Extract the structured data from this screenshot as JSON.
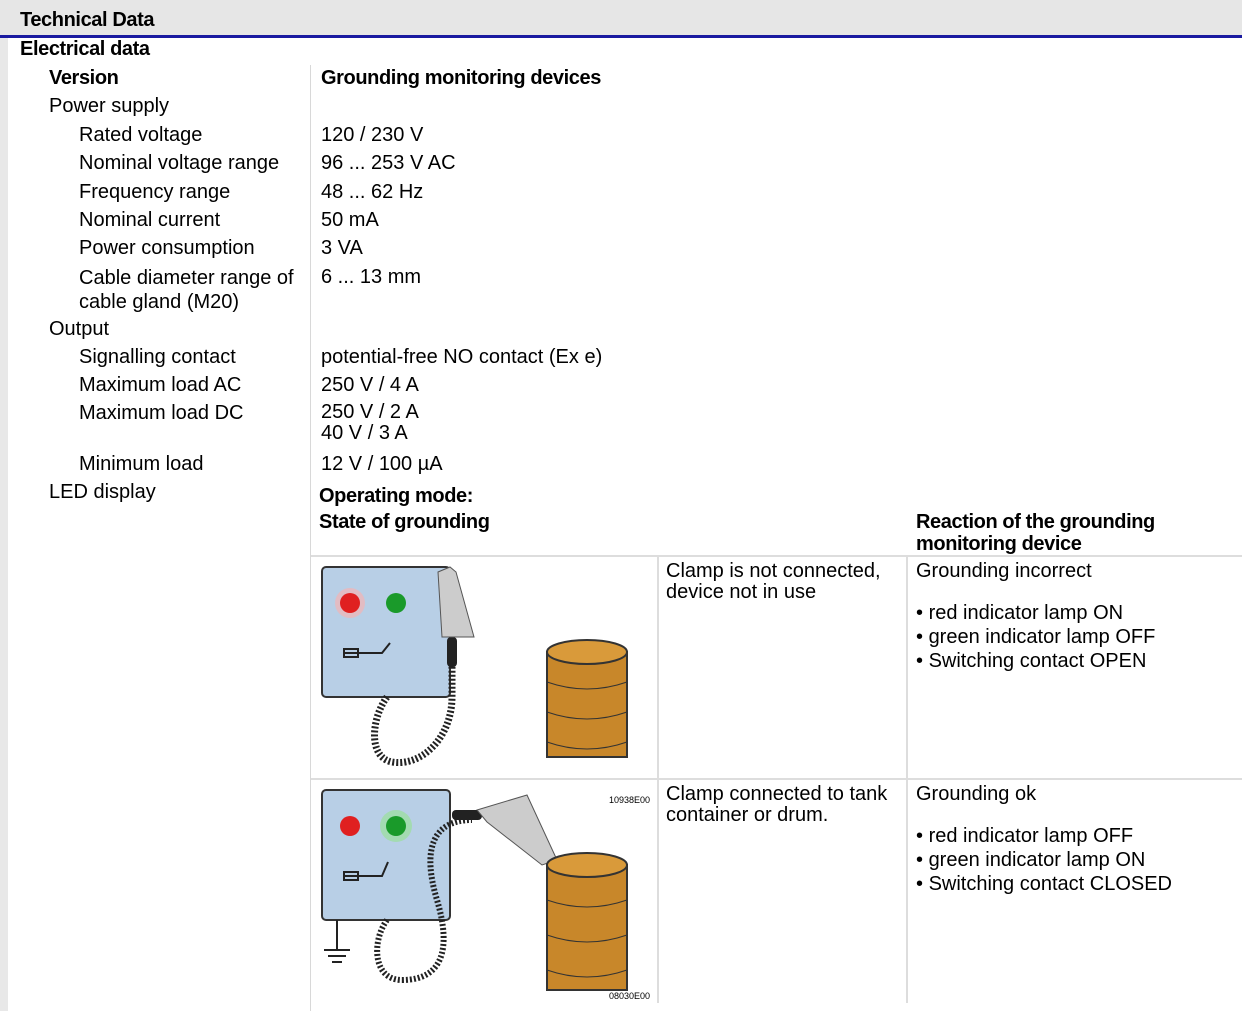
{
  "header": {
    "title": "Technical Data"
  },
  "section": {
    "title": "Electrical data"
  },
  "version": {
    "label": "Version",
    "value": "Grounding monitoring devices"
  },
  "groups": [
    {
      "label": "Power supply",
      "rows": [
        {
          "label": "Rated voltage",
          "value": [
            "120 / 230 V"
          ]
        },
        {
          "label": "Nominal voltage range",
          "value": [
            "96 ... 253 V AC"
          ]
        },
        {
          "label": "Frequency range",
          "value": [
            "48 ... 62 Hz"
          ]
        },
        {
          "label": "Nominal current",
          "value": [
            "50 mA"
          ]
        },
        {
          "label": "Power consumption",
          "value": [
            "3 VA"
          ]
        },
        {
          "label": "Cable diameter range of cable gland (M20)",
          "value": [
            "6 ... 13 mm"
          ]
        }
      ]
    },
    {
      "label": "Output",
      "rows": [
        {
          "label": "Signalling contact",
          "value": [
            "potential-free NO contact (Ex e)"
          ]
        },
        {
          "label": "Maximum load AC",
          "value": [
            "250 V / 4 A"
          ]
        },
        {
          "label": "Maximum load DC",
          "value": [
            "250 V / 2 A",
            "40 V / 3 A"
          ]
        },
        {
          "label": "Minimum load",
          "value": [
            "12 V / 100 µA"
          ]
        }
      ]
    }
  ],
  "led": {
    "label": "LED display",
    "mode": "Operating mode:",
    "col1": "State of grounding",
    "col2": "Reaction of the grounding monitoring device",
    "states": [
      {
        "image_code": "10938E00",
        "description": "Clamp is not connected, device not in use",
        "reaction": "Grounding incorrect",
        "items": [
          "red indicator lamp ON",
          "green indicator lamp OFF",
          "Switching contact OPEN"
        ]
      },
      {
        "image_code": "08030E00",
        "description": "Clamp connected to tank container or drum.",
        "reaction": "Grounding ok",
        "items": [
          "red indicator lamp OFF",
          "green indicator lamp ON",
          "Switching contact CLOSED"
        ]
      }
    ]
  }
}
